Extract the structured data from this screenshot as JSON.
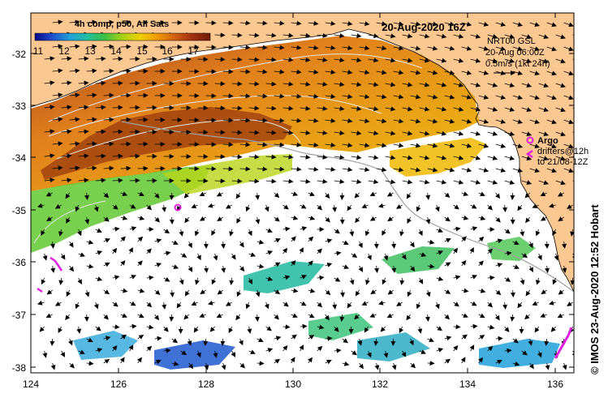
{
  "map": {
    "title": "20-Aug-2020 16Z",
    "colorbar": {
      "title": "4h comp, p50, All Sats",
      "ticks": [
        "11",
        "12",
        "13",
        "14",
        "15",
        "16",
        "17"
      ],
      "colors": [
        "#08088a",
        "#1e50d0",
        "#1fa0d8",
        "#20c0a0",
        "#3cc040",
        "#a8d018",
        "#f0d000",
        "#f09800",
        "#d06010",
        "#a03010",
        "#701808"
      ]
    },
    "lat_labels": [
      "-32",
      "-33",
      "-34",
      "-35",
      "-36",
      "-37",
      "-38"
    ],
    "lon_labels": [
      "124",
      "126",
      "128",
      "130",
      "132",
      "134",
      "136"
    ],
    "currents_legend": {
      "line1": "NRT00 GSL",
      "line2": "20-Aug 06:00Z",
      "line3": "0.5m/s (1kt 24h)"
    },
    "argo": {
      "label": "Argo",
      "drifters_line1": "drifters@12h",
      "drifters_line2": "to 21/08-12Z",
      "color": "#e020e0"
    },
    "credit": "© IMOS 23-Aug-2020 12:52 Hobart",
    "land_color": "#fcc892"
  }
}
